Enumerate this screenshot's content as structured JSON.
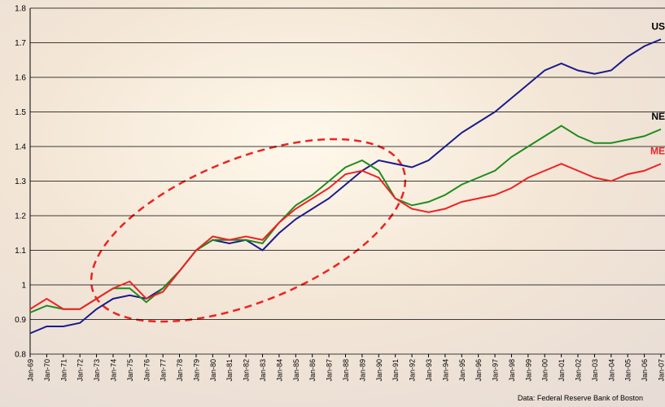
{
  "chart_data": {
    "type": "line",
    "categories": [
      "Jan-69",
      "Jan-70",
      "Jan-71",
      "Jan-72",
      "Jan-73",
      "Jan-74",
      "Jan-75",
      "Jan-76",
      "Jan-77",
      "Jan-78",
      "Jan-79",
      "Jan-80",
      "Jan-81",
      "Jan-82",
      "Jan-83",
      "Jan-84",
      "Jan-85",
      "Jan-86",
      "Jan-87",
      "Jan-88",
      "Jan-89",
      "Jan-90",
      "Jan-91",
      "Jan-92",
      "Jan-93",
      "Jan-94",
      "Jan-95",
      "Jan-96",
      "Jan-97",
      "Jan-98",
      "Jan-99",
      "Jan-00",
      "Jan-01",
      "Jan-02",
      "Jan-03",
      "Jan-04",
      "Jan-05",
      "Jan-06",
      "Jan-07"
    ],
    "series": [
      {
        "name": "US",
        "color": "#1a1a8c",
        "label_color": "#000000",
        "values": [
          0.86,
          0.88,
          0.88,
          0.89,
          0.93,
          0.96,
          0.97,
          0.96,
          0.99,
          1.04,
          1.1,
          1.13,
          1.12,
          1.13,
          1.1,
          1.15,
          1.19,
          1.22,
          1.25,
          1.29,
          1.33,
          1.36,
          1.35,
          1.34,
          1.36,
          1.4,
          1.44,
          1.47,
          1.5,
          1.54,
          1.58,
          1.62,
          1.64,
          1.62,
          1.61,
          1.62,
          1.66,
          1.69,
          1.71
        ]
      },
      {
        "name": "NE",
        "color": "#1e8c1e",
        "label_color": "#000000",
        "values": [
          0.92,
          0.94,
          0.93,
          0.93,
          0.96,
          0.99,
          0.99,
          0.95,
          0.99,
          1.04,
          1.1,
          1.13,
          1.13,
          1.13,
          1.12,
          1.18,
          1.23,
          1.26,
          1.3,
          1.34,
          1.36,
          1.33,
          1.25,
          1.23,
          1.24,
          1.26,
          1.29,
          1.31,
          1.33,
          1.37,
          1.4,
          1.43,
          1.46,
          1.43,
          1.41,
          1.41,
          1.42,
          1.43,
          1.45
        ]
      },
      {
        "name": "ME",
        "color": "#ee2222",
        "label_color": "#ee2222",
        "values": [
          0.93,
          0.96,
          0.93,
          0.93,
          0.96,
          0.99,
          1.01,
          0.96,
          0.98,
          1.04,
          1.1,
          1.14,
          1.13,
          1.14,
          1.13,
          1.18,
          1.22,
          1.25,
          1.28,
          1.32,
          1.33,
          1.31,
          1.25,
          1.22,
          1.21,
          1.22,
          1.24,
          1.25,
          1.26,
          1.28,
          1.31,
          1.33,
          1.35,
          1.33,
          1.31,
          1.3,
          1.32,
          1.33,
          1.35
        ]
      }
    ],
    "ylim": [
      0.8,
      1.8
    ],
    "yticks": [
      0.8,
      0.9,
      1,
      1.1,
      1.2,
      1.3,
      1.4,
      1.5,
      1.6,
      1.7,
      1.8
    ],
    "grid": true,
    "source": "Data:  Federal Reserve Bank of Boston"
  }
}
